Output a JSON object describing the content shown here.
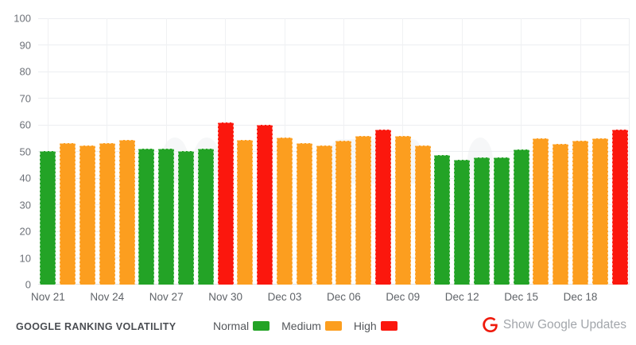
{
  "chart_data": {
    "type": "bar",
    "title": "GOOGLE RANKING VOLATILITY",
    "xlabel": "",
    "ylabel": "",
    "ylim": [
      0,
      100
    ],
    "y_ticks": [
      0,
      10,
      20,
      30,
      40,
      50,
      60,
      70,
      80,
      90,
      100
    ],
    "grid": true,
    "legend_position": "bottom",
    "x_tick_every": 3,
    "x": [
      "Nov 21",
      "Nov 22",
      "Nov 23",
      "Nov 24",
      "Nov 25",
      "Nov 26",
      "Nov 27",
      "Nov 28",
      "Nov 29",
      "Nov 30",
      "Dec 01",
      "Dec 02",
      "Dec 03",
      "Dec 04",
      "Dec 05",
      "Dec 06",
      "Dec 07",
      "Dec 08",
      "Dec 09",
      "Dec 10",
      "Dec 11",
      "Dec 12",
      "Dec 13",
      "Dec 14",
      "Dec 15",
      "Dec 16",
      "Dec 17",
      "Dec 18",
      "Dec 19",
      "Dec 20"
    ],
    "x_tick_labels": [
      "Nov 21",
      "Nov 24",
      "Nov 27",
      "Nov 30",
      "Dec 03",
      "Dec 06",
      "Dec 09",
      "Dec 12",
      "Dec 15",
      "Dec 18"
    ],
    "values": [
      50.1,
      53.2,
      52.3,
      53.2,
      54.3,
      51.1,
      51.1,
      50.1,
      51.1,
      60.9,
      54.3,
      60.1,
      55.2,
      53.0,
      52.3,
      54.0,
      55.9,
      58.1,
      55.9,
      52.3,
      48.8,
      46.9,
      47.7,
      47.7,
      50.8,
      54.9,
      52.9,
      54.1,
      55.0,
      58.2
    ],
    "levels": [
      "normal",
      "medium",
      "medium",
      "medium",
      "medium",
      "normal",
      "normal",
      "normal",
      "normal",
      "high",
      "medium",
      "high",
      "medium",
      "medium",
      "medium",
      "medium",
      "medium",
      "high",
      "medium",
      "medium",
      "normal",
      "normal",
      "normal",
      "normal",
      "normal",
      "medium",
      "medium",
      "medium",
      "medium",
      "high"
    ],
    "level_colors": {
      "normal": "#23a326",
      "medium": "#fc9e1f",
      "high": "#fb170d"
    }
  },
  "footer": {
    "title": "GOOGLE RANKING VOLATILITY",
    "legend": [
      {
        "label": "Normal",
        "level": "normal",
        "color": "#23a326"
      },
      {
        "label": "Medium",
        "level": "medium",
        "color": "#fc9e1f"
      },
      {
        "label": "High",
        "level": "high",
        "color": "#fb170d"
      }
    ],
    "google_updates_label": "Show Google Updates",
    "google_icon": "google-g-icon",
    "google_icon_color": "#ef1a0c"
  },
  "colors": {
    "background": "#ffffff",
    "gridline": "#eceef1",
    "axis_text": "#5f6368",
    "footer_title_text": "#4a4d52",
    "updates_text": "#a2a6ab"
  }
}
